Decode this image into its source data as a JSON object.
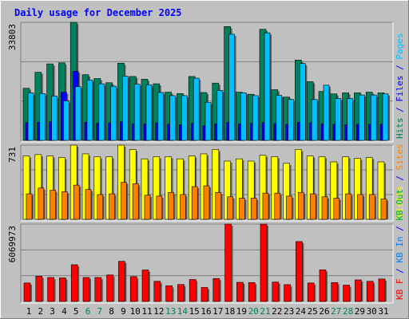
{
  "title": "Daily usage for December 2025",
  "panels": [
    {
      "max_label": "33803",
      "right_labels": [
        {
          "text": "Hits",
          "color": "#00805c"
        },
        {
          "text": " / ",
          "color": "#0000ff"
        },
        {
          "text": "Files",
          "color": "#0000ff"
        },
        {
          "text": " / ",
          "color": "#0000ff"
        },
        {
          "text": "Pages",
          "color": "#00c0ff"
        }
      ]
    },
    {
      "max_label": "731",
      "right_labels": [
        {
          "text": "Visits",
          "color": "#ffff00"
        },
        {
          "text": " / ",
          "color": "#0000ff"
        },
        {
          "text": "Sites",
          "color": "#ff8000"
        }
      ]
    },
    {
      "max_label": "6069973",
      "right_labels": [
        {
          "text": "KB F",
          "color": "#ff0000"
        },
        {
          "text": " / ",
          "color": "#0000ff"
        },
        {
          "text": "KB In",
          "color": "#0080ff"
        },
        {
          "text": " / ",
          "color": "#0000ff"
        },
        {
          "text": "KB Out",
          "color": "#00c000"
        }
      ]
    }
  ],
  "colors": {
    "hits": "#00805c",
    "files": "#0000ff",
    "pages": "#00c0ff",
    "visits": "#ffff00",
    "sites": "#ff8000",
    "kbytes": "#ff0000",
    "weekday_label": "#000000",
    "weekend_label": "#00805c",
    "background": "#c0c0c0",
    "title": "#0000ff"
  },
  "chart_data": [
    {
      "type": "bar",
      "categories": [
        "1",
        "2",
        "3",
        "4",
        "5",
        "6",
        "7",
        "8",
        "9",
        "10",
        "11",
        "12",
        "13",
        "14",
        "15",
        "16",
        "17",
        "18",
        "19",
        "20",
        "21",
        "22",
        "23",
        "24",
        "25",
        "26",
        "27",
        "28",
        "29",
        "30",
        "31"
      ],
      "weekend_days": [
        "6",
        "7",
        "13",
        "14",
        "20",
        "21",
        "27",
        "28"
      ],
      "ylim": [
        0,
        33803
      ],
      "series": [
        {
          "name": "Hits",
          "values": [
            14900,
            19500,
            21900,
            22200,
            33800,
            18800,
            17700,
            16500,
            22100,
            18300,
            17500,
            16200,
            13800,
            13400,
            18300,
            13700,
            16400,
            32600,
            13800,
            13200,
            31800,
            14500,
            12400,
            23000,
            16800,
            14000,
            13300,
            13600,
            13600,
            13800,
            13600
          ]
        },
        {
          "name": "Files",
          "values": [
            5100,
            5200,
            5300,
            13800,
            19800,
            5200,
            4900,
            5000,
            5300,
            4800,
            4700,
            5000,
            4600,
            4500,
            4900,
            4200,
            4700,
            5100,
            4700,
            4900,
            5100,
            4800,
            4600,
            5200,
            5000,
            4700,
            4600,
            4500,
            4600,
            4600,
            4600
          ]
        },
        {
          "name": "Pages",
          "values": [
            13600,
            13400,
            12700,
            11300,
            15400,
            17300,
            16200,
            15500,
            18400,
            16100,
            15900,
            13700,
            12800,
            12800,
            17800,
            10900,
            14300,
            30400,
            13600,
            12800,
            30800,
            12900,
            11700,
            22000,
            11700,
            15800,
            12000,
            12000,
            13000,
            13000,
            13300
          ]
        }
      ]
    },
    {
      "type": "bar",
      "categories": [
        "1",
        "2",
        "3",
        "4",
        "5",
        "6",
        "7",
        "8",
        "9",
        "10",
        "11",
        "12",
        "13",
        "14",
        "15",
        "16",
        "17",
        "18",
        "19",
        "20",
        "21",
        "22",
        "23",
        "24",
        "25",
        "26",
        "27",
        "28",
        "29",
        "30",
        "31"
      ],
      "ylim": [
        0,
        731
      ],
      "series": [
        {
          "name": "Visits",
          "values": [
            624,
            638,
            624,
            609,
            731,
            645,
            617,
            617,
            731,
            688,
            596,
            617,
            617,
            596,
            624,
            645,
            688,
            574,
            596,
            574,
            631,
            617,
            552,
            688,
            624,
            617,
            566,
            617,
            601,
            609,
            566
          ]
        },
        {
          "name": "Sites",
          "values": [
            251,
            308,
            287,
            272,
            337,
            294,
            244,
            251,
            365,
            351,
            237,
            229,
            265,
            244,
            322,
            330,
            265,
            222,
            208,
            208,
            258,
            258,
            229,
            265,
            251,
            222,
            208,
            251,
            244,
            244,
            201
          ]
        }
      ]
    },
    {
      "type": "bar",
      "categories": [
        "1",
        "2",
        "3",
        "4",
        "5",
        "6",
        "7",
        "8",
        "9",
        "10",
        "11",
        "12",
        "13",
        "14",
        "15",
        "16",
        "17",
        "18",
        "19",
        "20",
        "21",
        "22",
        "23",
        "24",
        "25",
        "26",
        "27",
        "28",
        "29",
        "30",
        "31"
      ],
      "ylim": [
        0,
        6069973
      ],
      "series": [
        {
          "name": "KB F",
          "values": [
            1450000,
            1980000,
            1880000,
            1850000,
            2880000,
            1880000,
            1880000,
            2080000,
            3150000,
            1950000,
            2470000,
            1580000,
            1230000,
            1330000,
            1720000,
            1100000,
            1800000,
            6069973,
            1500000,
            1480000,
            6069973,
            1520000,
            1320000,
            4700000,
            1450000,
            2480000,
            1480000,
            1280000,
            1690000,
            1580000,
            1760000
          ]
        }
      ]
    }
  ]
}
